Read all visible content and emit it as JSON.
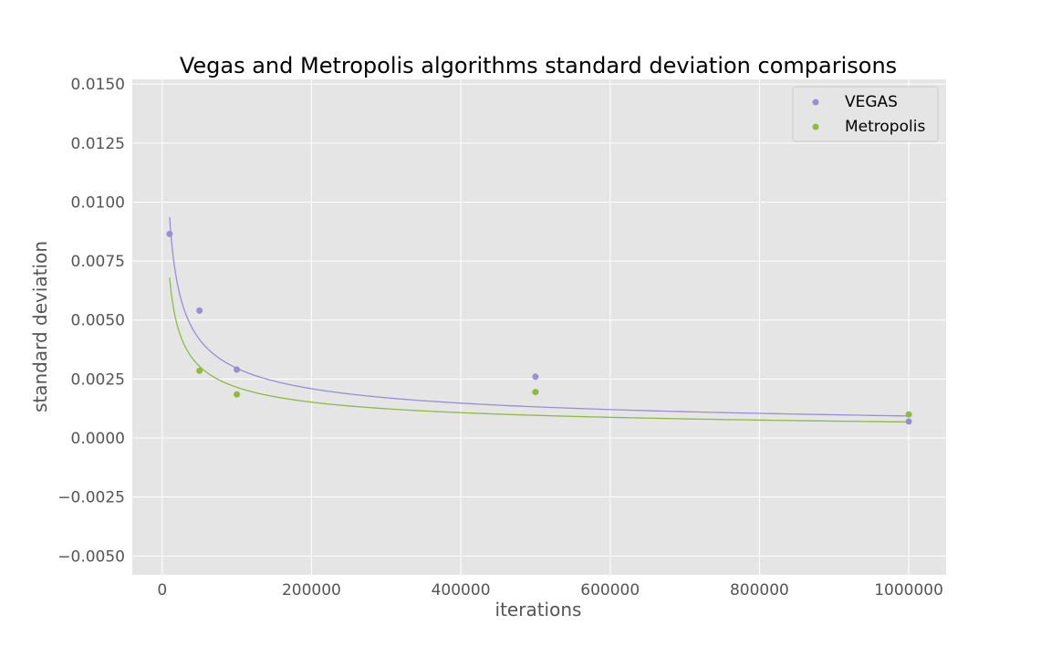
{
  "chart_data": {
    "type": "scatter",
    "title": "Vegas and Metropolis algorithms standard deviation comparisons",
    "xlabel": "iterations",
    "ylabel": "standard deviation",
    "xlim": [
      -40000,
      1050000
    ],
    "ylim": [
      -0.0058,
      0.0152
    ],
    "xticks": [
      0,
      200000,
      400000,
      600000,
      800000,
      1000000
    ],
    "xtick_labels": [
      "0",
      "200000",
      "400000",
      "600000",
      "800000",
      "1000000"
    ],
    "yticks": [
      -0.005,
      -0.0025,
      0.0,
      0.0025,
      0.005,
      0.0075,
      0.01,
      0.0125,
      0.015
    ],
    "ytick_labels": [
      "−0.0050",
      "−0.0025",
      "0.0000",
      "0.0025",
      "0.0050",
      "0.0075",
      "0.0100",
      "0.0125",
      "0.0150"
    ],
    "grid": true,
    "legend_position": "top-right",
    "series": [
      {
        "name": "VEGAS",
        "color": "#988ed5",
        "points": [
          {
            "x": 10000,
            "y": 0.00865
          },
          {
            "x": 50000,
            "y": 0.0054
          },
          {
            "x": 100000,
            "y": 0.0029
          },
          {
            "x": 500000,
            "y": 0.0026
          },
          {
            "x": 1000000,
            "y": 0.0007
          }
        ],
        "fit_curve": {
          "form": "a/sqrt(x)",
          "a": 0.935,
          "x_range": [
            10000,
            1000000
          ]
        }
      },
      {
        "name": "Metropolis",
        "color": "#8eba42",
        "points": [
          {
            "x": 50000,
            "y": 0.00285
          },
          {
            "x": 100000,
            "y": 0.00185
          },
          {
            "x": 500000,
            "y": 0.00195
          },
          {
            "x": 1000000,
            "y": 0.001
          }
        ],
        "fit_curve": {
          "form": "a/sqrt(x)",
          "a": 0.68,
          "x_range": [
            10000,
            1000000
          ]
        }
      }
    ],
    "colors": {
      "plot_background": "#e5e5e5",
      "grid": "#ffffff",
      "tick_label": "#555555",
      "axis_label": "#555555",
      "title": "#000000"
    }
  }
}
